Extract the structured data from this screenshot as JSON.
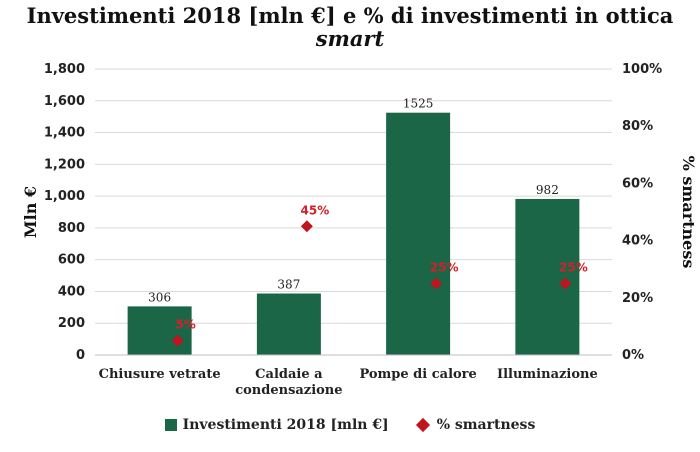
{
  "colors": {
    "bar": "#1a6647",
    "point": "#c0141e",
    "grid": "#d9d9d9",
    "pointLabel": "#d4202a"
  },
  "chart_data": {
    "type": "bar",
    "title_line1": "Investimenti 2018 [mln €] e % di investimenti in ottica",
    "title_line2": "smart",
    "categories": [
      "Chiusure vetrate",
      "Caldaie a condensazione",
      "Pompe di calore",
      "Illuminazione"
    ],
    "category_lines": [
      [
        "Chiusure vetrate"
      ],
      [
        "Caldaie a",
        "condensazione"
      ],
      [
        "Pompe di calore"
      ],
      [
        "Illuminazione"
      ]
    ],
    "series": [
      {
        "name": "Investimenti 2018 [mln €]",
        "type": "bar",
        "axis": "left",
        "values": [
          306,
          387,
          1525,
          982
        ],
        "labels": [
          "306",
          "387",
          "1525",
          "982"
        ]
      },
      {
        "name": "% smartness",
        "type": "scatter",
        "marker": "diamond",
        "axis": "right",
        "values": [
          5,
          45,
          25,
          25
        ],
        "labels": [
          "5%",
          "45%",
          "25%",
          "25%"
        ]
      }
    ],
    "ylabel": "Mln €",
    "ylabel_right": "% smartness",
    "ylim": [
      0,
      1800
    ],
    "yticks": [
      "0",
      "200",
      "400",
      "600",
      "800",
      "1,000",
      "1,200",
      "1,400",
      "1,600",
      "1,800"
    ],
    "ylim_right": [
      0,
      100
    ],
    "yticks_right": [
      "0%",
      "20%",
      "40%",
      "60%",
      "80%",
      "100%"
    ],
    "grid": true,
    "legend_position": "bottom"
  }
}
